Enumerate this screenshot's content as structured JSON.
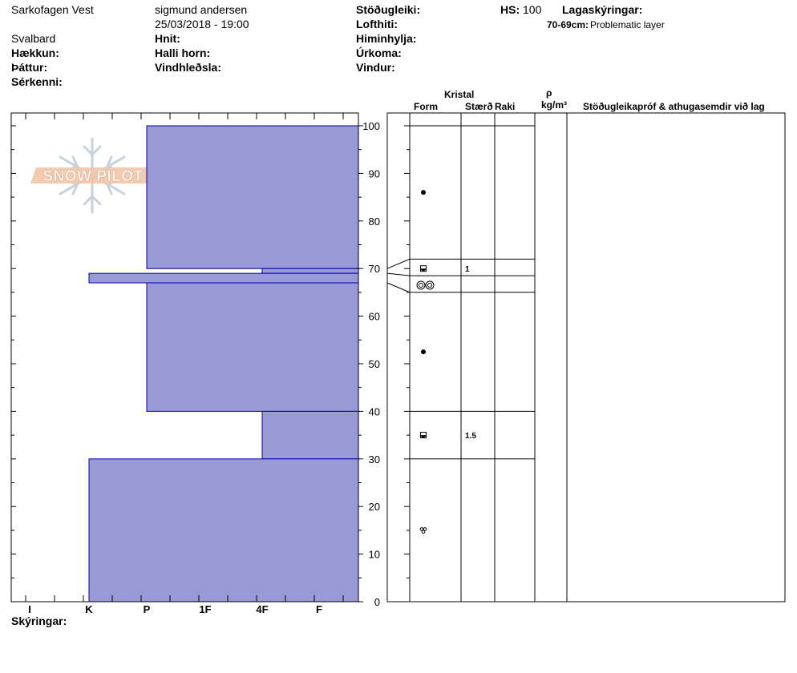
{
  "header": {
    "location": "Sarkofagen Vest",
    "observer": "sigmund andersen",
    "datetime": "25/03/2018 - 19:00",
    "region": "Svalbard",
    "labels": {
      "elevation": "Hækkun:",
      "aspect": "Þáttur:",
      "features": "Sérkenni:",
      "coordinates": "Hnit:",
      "slope_angle": "Halli horn:",
      "wind_loading": "Vindhleðsla:",
      "stability": "Stöðugleiki:",
      "air_temp": "Lofthiti:",
      "sky": "Himinhylja:",
      "precip": "Úrkoma:",
      "wind": "Vindur:",
      "hs": "HS:",
      "layer_notes_title": "Lagaskýringar:"
    },
    "hs_value": "100",
    "layer_note_depth": "70-69cm:",
    "layer_note_text": "Problematic layer"
  },
  "columns": {
    "kristal": "Kristal",
    "form": "Form",
    "size": "Stærð",
    "moisture": "Raki",
    "rho": "ρ",
    "density_unit": "kg/m³",
    "tests": "Stöðugleikapróf & athugasemdir við lag"
  },
  "footer": {
    "legend": "Skýringar:"
  },
  "logo": {
    "text": "SNOW PILOT"
  },
  "colors": {
    "hardness_fill": "#9999D6",
    "hardness_stroke": "#0000AA"
  },
  "chart_data": {
    "type": "bar",
    "orientation": "horizontal",
    "y_range": [
      0,
      100
    ],
    "y_ticks": [
      0,
      10,
      20,
      30,
      40,
      50,
      60,
      70,
      80,
      90,
      100
    ],
    "hardness_scale": [
      "I",
      "K",
      "P",
      "1F",
      "4F",
      "F"
    ],
    "layers": [
      {
        "top": 100,
        "bottom": 70,
        "hardness": "P"
      },
      {
        "top": 70,
        "bottom": 69,
        "hardness": "4F"
      },
      {
        "top": 69,
        "bottom": 67,
        "hardness": "K"
      },
      {
        "top": 67,
        "bottom": 40,
        "hardness": "P"
      },
      {
        "top": 40,
        "bottom": 30,
        "hardness": "4F"
      },
      {
        "top": 30,
        "bottom": 0,
        "hardness": "K"
      }
    ],
    "crystal_boundaries": [
      100,
      72,
      68.5,
      65,
      40,
      30,
      0
    ],
    "crystals": [
      {
        "depth": 86,
        "form": "rounded",
        "size": ""
      },
      {
        "depth": 70,
        "form": "faceted-rounded",
        "size": "1"
      },
      {
        "depth": 66.5,
        "form": "melt-forms",
        "size": ""
      },
      {
        "depth": 52.5,
        "form": "rounded",
        "size": ""
      },
      {
        "depth": 35,
        "form": "faceted-rounded",
        "size": "1.5"
      },
      {
        "depth": 15,
        "form": "depth-hoar",
        "size": ""
      }
    ]
  }
}
